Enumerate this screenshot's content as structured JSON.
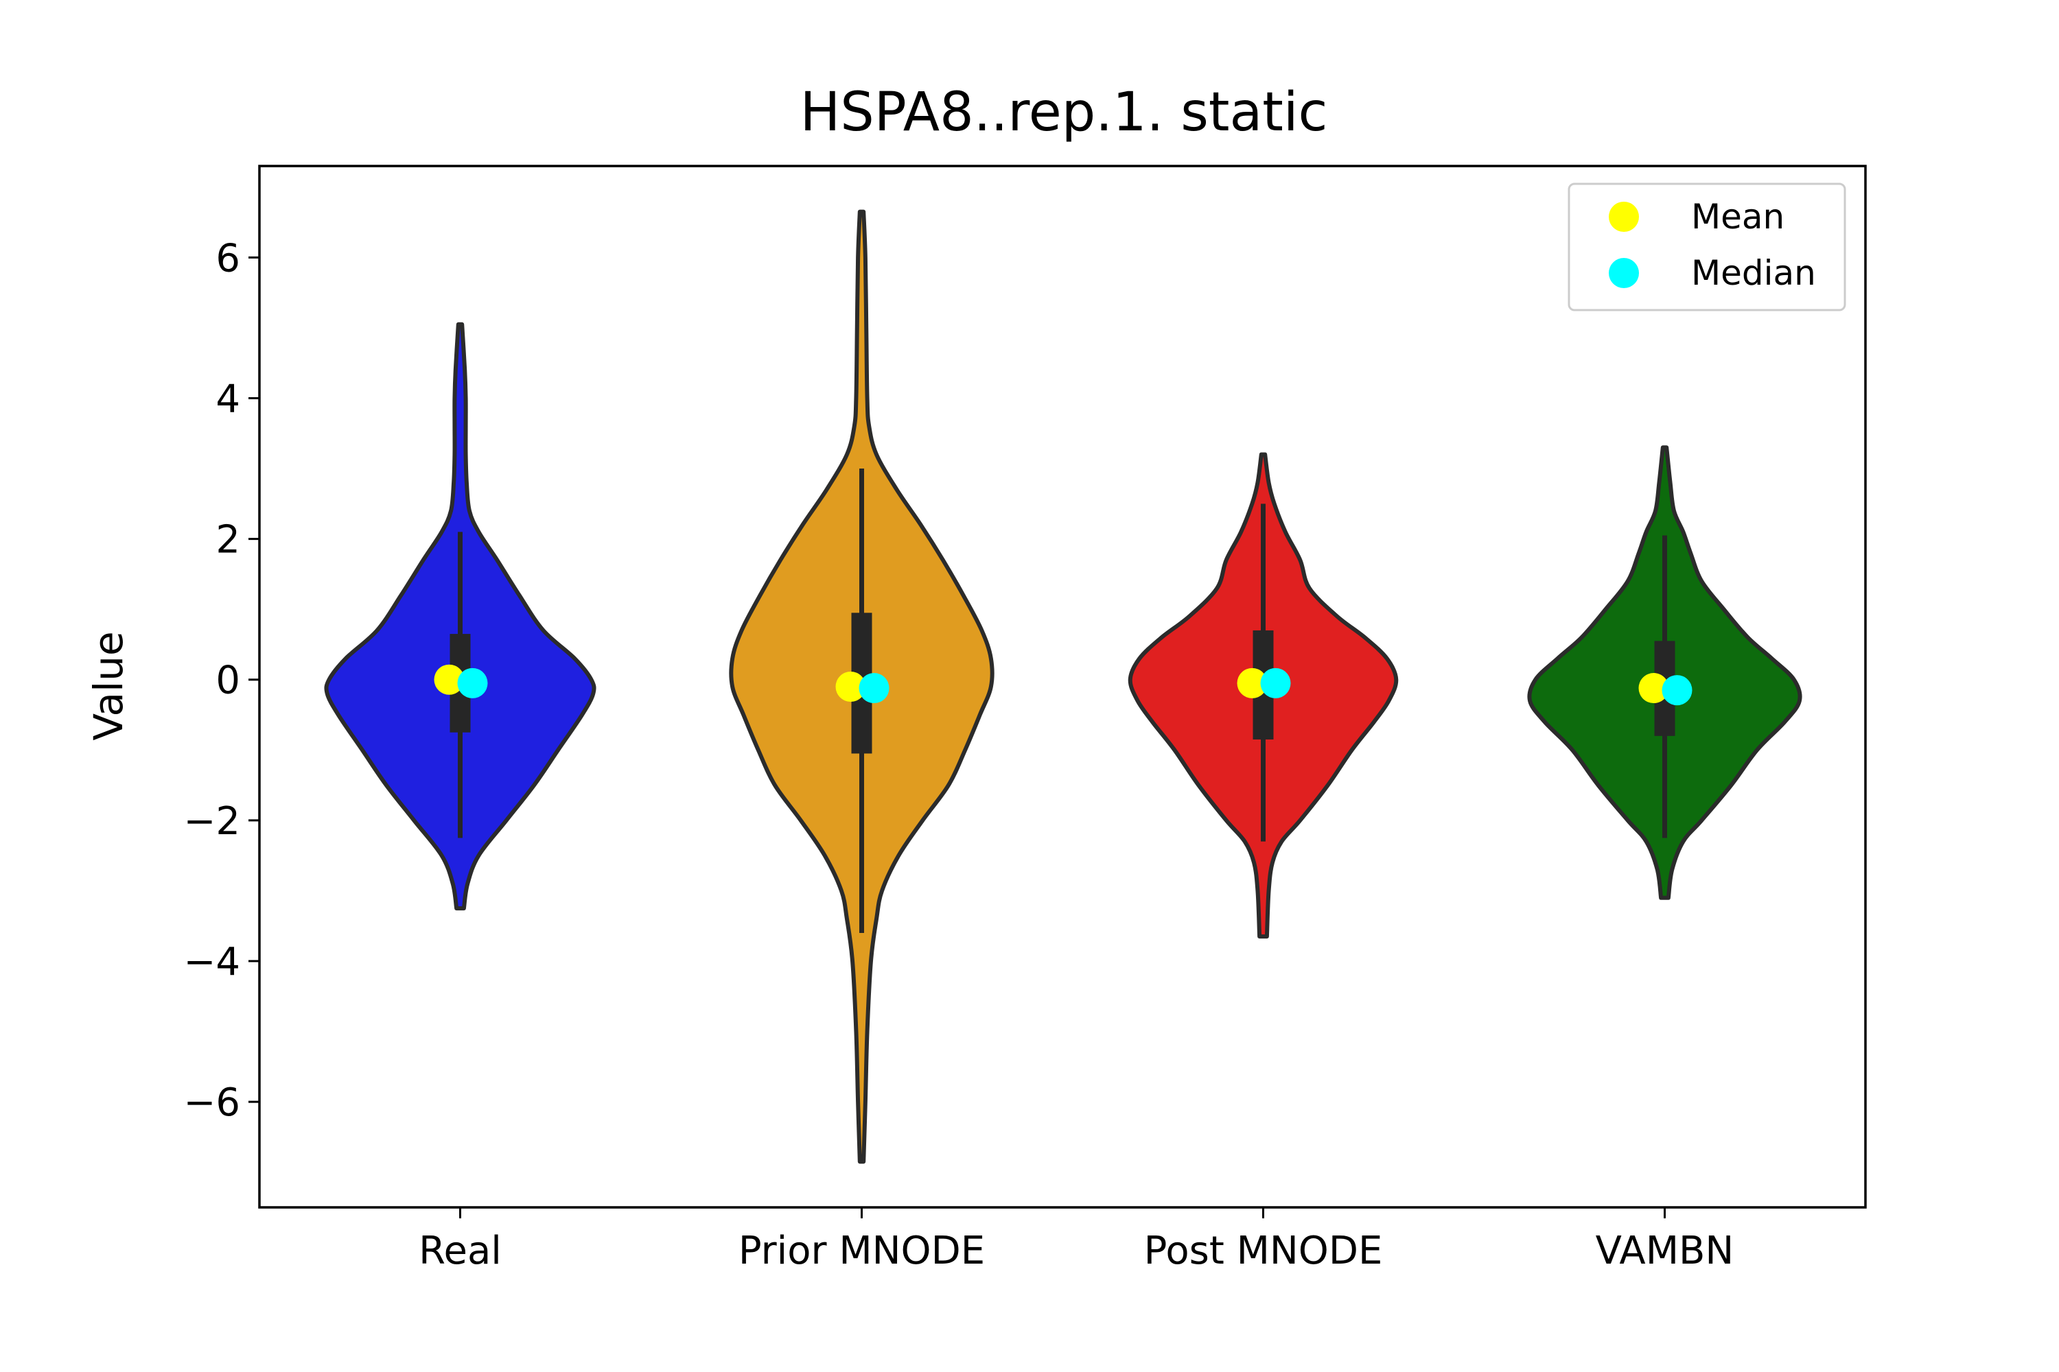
{
  "chart_data": {
    "type": "violin",
    "title": "HSPA8..rep.1. static",
    "xlabel": "",
    "ylabel": "Value",
    "ylim": [
      -7.5,
      7.3
    ],
    "yticks": [
      -6,
      -4,
      -2,
      0,
      2,
      4,
      6
    ],
    "ytick_labels": [
      "−6",
      "−4",
      "−2",
      "0",
      "2",
      "4",
      "6"
    ],
    "categories": [
      "Real",
      "Prior MNODE",
      "Post MNODE",
      "VAMBN"
    ],
    "grid": false,
    "legend": {
      "placement": "top-right",
      "entries": [
        {
          "label": "Mean",
          "color": "#ffff00"
        },
        {
          "label": "Median",
          "color": "#00ffff"
        }
      ]
    },
    "series": [
      {
        "category": "Real",
        "color": "#1f20e0",
        "min": -3.25,
        "max": 5.05,
        "q1": -0.75,
        "q3": 0.65,
        "whisker_low": -2.25,
        "whisker_high": 2.1,
        "mean": 0.0,
        "median": -0.05,
        "density_y": [
          -3.25,
          -2.9,
          -2.5,
          -2.0,
          -1.5,
          -1.0,
          -0.5,
          -0.2,
          0.0,
          0.3,
          0.7,
          1.2,
          1.7,
          2.1,
          2.4,
          2.8,
          3.2,
          3.6,
          4.0,
          4.4,
          5.05
        ],
        "density_width": [
          0.02,
          0.04,
          0.1,
          0.25,
          0.4,
          0.53,
          0.66,
          0.72,
          0.71,
          0.62,
          0.45,
          0.32,
          0.2,
          0.1,
          0.05,
          0.035,
          0.03,
          0.03,
          0.03,
          0.025,
          0.01
        ]
      },
      {
        "category": "Prior MNODE",
        "color": "#e09c20",
        "min": -6.85,
        "max": 6.65,
        "q1": -1.05,
        "q3": 0.95,
        "whisker_low": -3.6,
        "whisker_high": 3.0,
        "mean": -0.1,
        "median": -0.12,
        "density_y": [
          -6.85,
          -6.0,
          -5.0,
          -4.0,
          -3.4,
          -3.0,
          -2.5,
          -2.0,
          -1.5,
          -1.0,
          -0.5,
          -0.1,
          0.3,
          0.7,
          1.2,
          1.7,
          2.2,
          2.7,
          3.2,
          3.6,
          4.0,
          5.0,
          6.0,
          6.65
        ],
        "density_width": [
          0.01,
          0.02,
          0.03,
          0.05,
          0.08,
          0.11,
          0.2,
          0.33,
          0.47,
          0.56,
          0.64,
          0.7,
          0.7,
          0.65,
          0.55,
          0.44,
          0.32,
          0.19,
          0.08,
          0.04,
          0.03,
          0.025,
          0.02,
          0.01
        ]
      },
      {
        "category": "Post MNODE",
        "color": "#e02020",
        "min": -3.65,
        "max": 3.2,
        "q1": -0.85,
        "q3": 0.7,
        "whisker_low": -2.3,
        "whisker_high": 2.5,
        "mean": -0.05,
        "median": -0.05,
        "density_y": [
          -3.65,
          -3.0,
          -2.6,
          -2.3,
          -2.0,
          -1.5,
          -1.0,
          -0.6,
          -0.3,
          0.0,
          0.3,
          0.6,
          0.9,
          1.3,
          1.7,
          2.1,
          2.5,
          2.8,
          3.2
        ],
        "density_width": [
          0.02,
          0.03,
          0.05,
          0.1,
          0.2,
          0.35,
          0.48,
          0.6,
          0.68,
          0.72,
          0.67,
          0.55,
          0.4,
          0.25,
          0.2,
          0.12,
          0.06,
          0.03,
          0.01
        ]
      },
      {
        "category": "VAMBN",
        "color": "#0d6b0d",
        "min": -3.1,
        "max": 3.3,
        "q1": -0.8,
        "q3": 0.55,
        "whisker_low": -2.25,
        "whisker_high": 2.05,
        "mean": -0.12,
        "median": -0.15,
        "density_y": [
          -3.1,
          -2.7,
          -2.3,
          -2.0,
          -1.5,
          -1.0,
          -0.6,
          -0.3,
          0.0,
          0.3,
          0.6,
          1.0,
          1.4,
          1.8,
          2.1,
          2.4,
          2.8,
          3.3
        ],
        "density_width": [
          0.02,
          0.04,
          0.1,
          0.2,
          0.36,
          0.5,
          0.65,
          0.73,
          0.7,
          0.58,
          0.45,
          0.32,
          0.2,
          0.14,
          0.1,
          0.05,
          0.03,
          0.01
        ]
      }
    ]
  }
}
